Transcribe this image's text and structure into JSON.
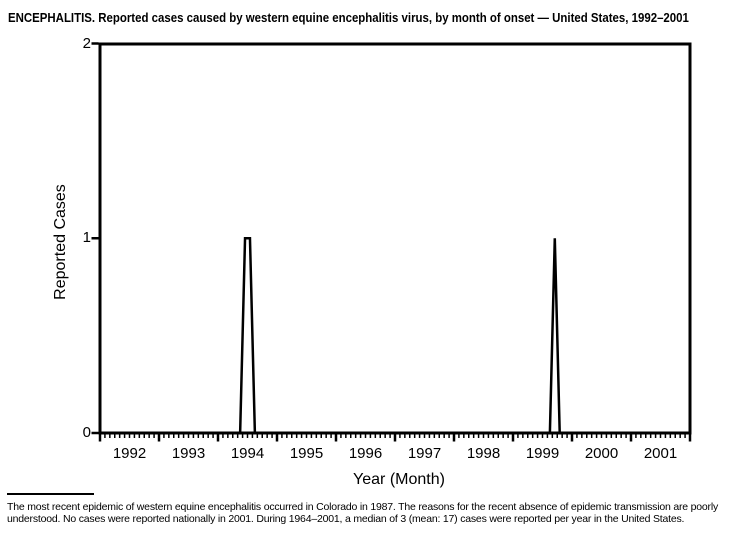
{
  "title": "ENCEPHALITIS. Reported cases caused by western equine encephalitis virus, by month of onset — United States, 1992–2001",
  "footnote": {
    "line1": "The most recent epidemic of western equine encephalitis occurred in Colorado in 1987. The reasons for the recent absence of epidemic transmission are poorly",
    "line2": "understood. No cases were reported nationally in 2001. During 1964–2001, a median of 3 (mean: 17) cases were reported per year in the United States."
  },
  "chart_data": {
    "type": "line",
    "title": "ENCEPHALITIS. Reported cases caused by western equine encephalitis virus, by month of onset — United States, 1992–2001",
    "xlabel": "Year (Month)",
    "ylabel": "Reported Cases",
    "ylim": [
      0,
      2
    ],
    "yticks": [
      0,
      1,
      2
    ],
    "grid": false,
    "legend": "none",
    "line_color": "#000000",
    "background_color": "#ffffff",
    "x_years": [
      "1992",
      "1993",
      "1994",
      "1995",
      "1996",
      "1997",
      "1998",
      "1999",
      "2000",
      "2001"
    ],
    "months_per_year": 12,
    "nonzero_points": [
      {
        "month": "1994-06",
        "cases": 1
      },
      {
        "month": "1994-07",
        "cases": 1
      },
      {
        "month": "1999-09",
        "cases": 1
      }
    ],
    "monthly_values": [
      0,
      0,
      0,
      0,
      0,
      0,
      0,
      0,
      0,
      0,
      0,
      0,
      0,
      0,
      0,
      0,
      0,
      0,
      0,
      0,
      0,
      0,
      0,
      0,
      0,
      0,
      0,
      0,
      0,
      1,
      1,
      0,
      0,
      0,
      0,
      0,
      0,
      0,
      0,
      0,
      0,
      0,
      0,
      0,
      0,
      0,
      0,
      0,
      0,
      0,
      0,
      0,
      0,
      0,
      0,
      0,
      0,
      0,
      0,
      0,
      0,
      0,
      0,
      0,
      0,
      0,
      0,
      0,
      0,
      0,
      0,
      0,
      0,
      0,
      0,
      0,
      0,
      0,
      0,
      0,
      0,
      0,
      0,
      0,
      0,
      0,
      0,
      0,
      0,
      0,
      0,
      0,
      1,
      0,
      0,
      0,
      0,
      0,
      0,
      0,
      0,
      0,
      0,
      0,
      0,
      0,
      0,
      0,
      0,
      0,
      0,
      0,
      0,
      0,
      0,
      0,
      0,
      0,
      0,
      0
    ]
  }
}
